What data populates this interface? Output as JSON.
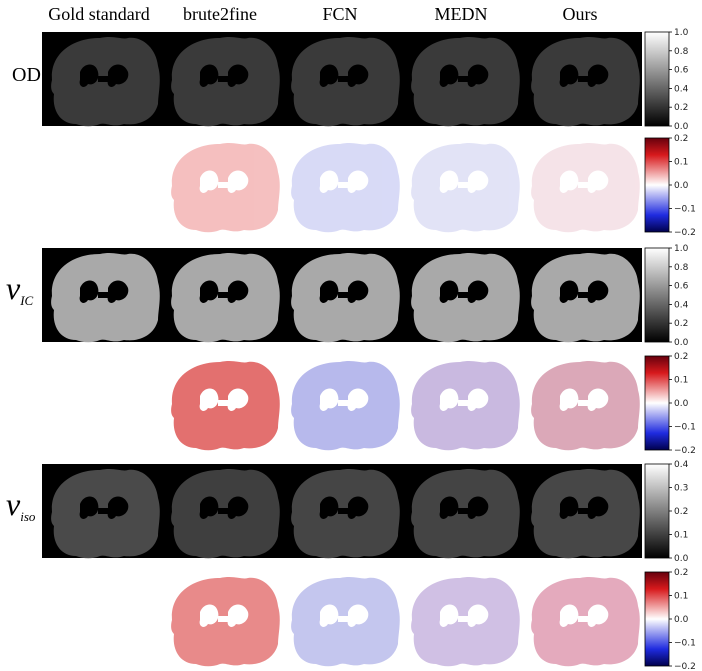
{
  "columns": [
    "Gold standard",
    "brute2fine",
    "FCN",
    "MEDN",
    "Ours"
  ],
  "rows": {
    "od": {
      "label": "OD"
    },
    "vic": {
      "symbol": "ν",
      "subscript": "IC"
    },
    "viso": {
      "symbol": "ν",
      "subscript": "iso"
    }
  },
  "colorbars": [
    {
      "kind": "gray",
      "ticks": [
        "1.0",
        "0.8",
        "0.6",
        "0.4",
        "0.2",
        "0.0"
      ]
    },
    {
      "kind": "diverging",
      "ticks": [
        "0.2",
        "0.1",
        "0.0",
        "−0.1",
        "−0.2"
      ]
    },
    {
      "kind": "gray",
      "ticks": [
        "1.0",
        "0.8",
        "0.6",
        "0.4",
        "0.2",
        "0.0"
      ]
    },
    {
      "kind": "diverging",
      "ticks": [
        "0.2",
        "0.1",
        "0.0",
        "−0.1",
        "−0.2"
      ]
    },
    {
      "kind": "gray",
      "ticks": [
        "0.4",
        "0.3",
        "0.2",
        "0.1",
        "0.0"
      ]
    },
    {
      "kind": "diverging",
      "ticks": [
        "0.2",
        "0.1",
        "0.0",
        "−0.1",
        "−0.2"
      ]
    }
  ],
  "colors": {
    "error_positive": "#d7191c",
    "error_negative": "#2b3cc4",
    "panel_bg": "#000000"
  }
}
